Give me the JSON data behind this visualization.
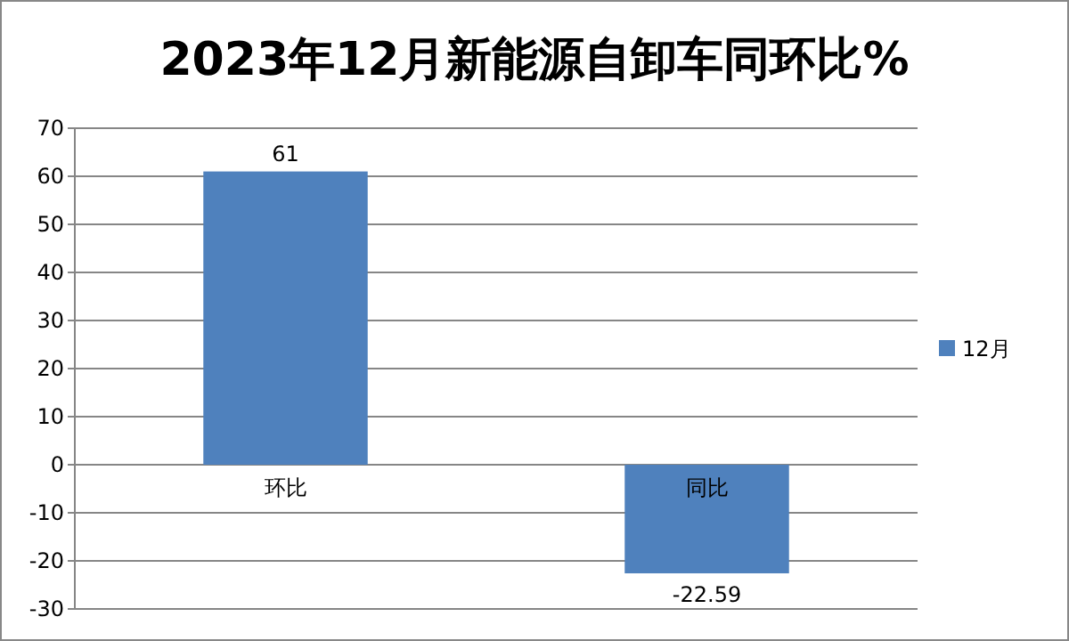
{
  "chart_data": {
    "type": "bar",
    "title": "2023年12月新能源自卸车同环比%",
    "categories": [
      "环比",
      "同比"
    ],
    "series": [
      {
        "name": "12月",
        "color": "#4f81bd",
        "values": [
          61,
          -22.59
        ]
      }
    ],
    "ylim": [
      -30,
      70
    ],
    "yticks": [
      -30,
      -20,
      -10,
      0,
      10,
      20,
      30,
      40,
      50,
      60,
      70
    ],
    "grid": "y",
    "legend": "right",
    "data_labels": true
  }
}
